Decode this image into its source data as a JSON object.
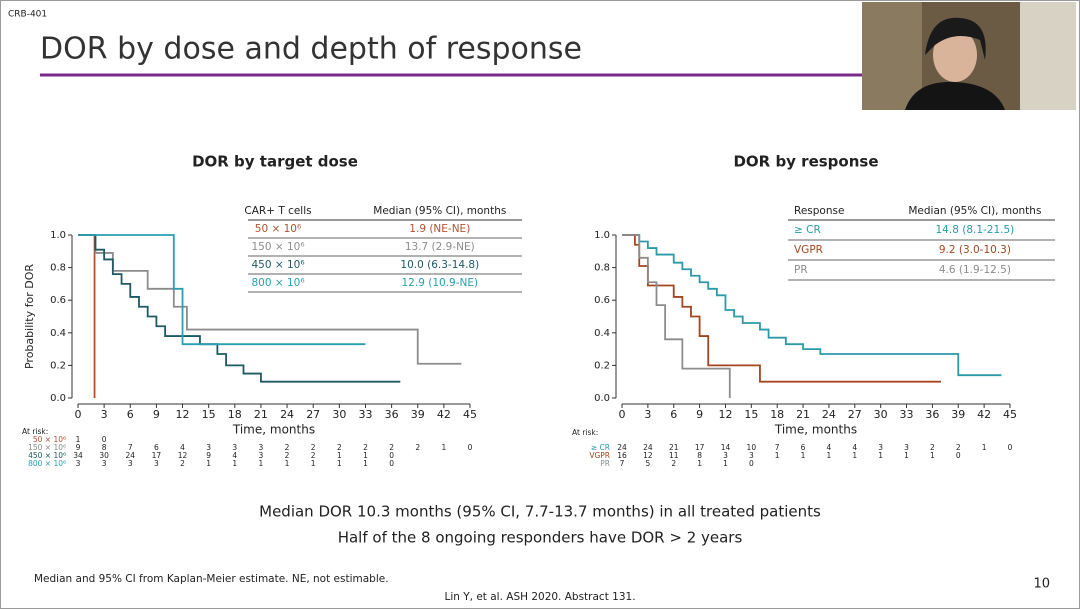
{
  "header": {
    "tag": "CRB-401",
    "title": "DOR by dose and depth of response"
  },
  "chart_data": [
    {
      "type": "line",
      "step": true,
      "title": "DOR by target dose",
      "y_label": "Probability for DOR",
      "x_label": "Time, months",
      "xlim": [
        0,
        45
      ],
      "ylim": [
        0,
        1
      ],
      "xticks": [
        0,
        3,
        6,
        9,
        12,
        15,
        18,
        21,
        24,
        27,
        30,
        33,
        36,
        39,
        42,
        45
      ],
      "yticks": [
        {
          "value": 0,
          "label": "0.0"
        },
        0.2,
        0.4,
        0.6,
        0.8,
        {
          "value": 1,
          "label": "1.0"
        }
      ],
      "table_headers": [
        "CAR+ T cells",
        "Median (95% CI), months"
      ],
      "at_risk_label": "At risk:",
      "series": [
        {
          "name": "50 × 10⁶",
          "color": "#b0532e",
          "median": "1.9 (NE-NE)",
          "x": [
            0,
            1.9
          ],
          "values": [
            1,
            0
          ],
          "at_risk": [
            1,
            0
          ]
        },
        {
          "name": "150 × 10⁶",
          "color": "#8c8c8c",
          "median": "13.7 (2.9-NE)",
          "x": [
            0,
            2,
            4,
            8,
            11,
            12.5,
            39,
            44
          ],
          "values": [
            1,
            0.89,
            0.78,
            0.67,
            0.56,
            0.42,
            0.21,
            0.21
          ],
          "at_risk": [
            9,
            8,
            7,
            6,
            4,
            3,
            3,
            3,
            2,
            2,
            2,
            2,
            2,
            2,
            1,
            0
          ]
        },
        {
          "name": "450 × 10⁶",
          "color": "#1d5a62",
          "median": "10.0 (6.3-14.8)",
          "x": [
            0,
            2,
            3,
            4,
            5,
            6,
            7,
            8,
            9,
            10,
            12,
            14,
            16,
            17,
            19,
            21,
            37
          ],
          "values": [
            1,
            0.91,
            0.85,
            0.76,
            0.7,
            0.62,
            0.56,
            0.5,
            0.44,
            0.38,
            0.38,
            0.33,
            0.27,
            0.2,
            0.15,
            0.1,
            0.1
          ],
          "at_risk": [
            34,
            30,
            24,
            17,
            12,
            9,
            4,
            3,
            2,
            2,
            1,
            1,
            0
          ]
        },
        {
          "name": "800 × 10⁶",
          "color": "#2a9fb0",
          "median": "12.9 (10.9-NE)",
          "x": [
            0,
            11,
            12,
            33
          ],
          "values": [
            1,
            0.67,
            0.33,
            0.33
          ],
          "at_risk": [
            3,
            3,
            3,
            3,
            2,
            1,
            1,
            1,
            1,
            1,
            1,
            1,
            0
          ]
        }
      ]
    },
    {
      "type": "line",
      "step": true,
      "title": "DOR by response",
      "x_label": "Time, months",
      "xlim": [
        0,
        45
      ],
      "ylim": [
        0,
        1
      ],
      "xticks": [
        0,
        3,
        6,
        9,
        12,
        15,
        18,
        21,
        24,
        27,
        30,
        33,
        36,
        39,
        42,
        45
      ],
      "yticks": [
        {
          "value": 0,
          "label": "0.0"
        },
        0.2,
        0.4,
        0.6,
        0.8,
        {
          "value": 1,
          "label": "1.0"
        }
      ],
      "table_headers": [
        "Response",
        "Median (95% CI), months"
      ],
      "at_risk_label": "At risk:",
      "series": [
        {
          "name": "≥ CR",
          "color": "#2a9aa8",
          "median": "14.8 (8.1-21.5)",
          "x": [
            0,
            2,
            3,
            4,
            6,
            7,
            8,
            9,
            10,
            11,
            12,
            13,
            14,
            16,
            17,
            19,
            21,
            23,
            39,
            44
          ],
          "values": [
            1,
            0.96,
            0.92,
            0.88,
            0.83,
            0.79,
            0.75,
            0.71,
            0.67,
            0.63,
            0.54,
            0.5,
            0.46,
            0.42,
            0.37,
            0.33,
            0.3,
            0.27,
            0.14,
            0.14
          ],
          "at_risk": [
            24,
            24,
            21,
            17,
            14,
            10,
            7,
            6,
            4,
            4,
            3,
            3,
            2,
            2,
            1,
            0
          ]
        },
        {
          "name": "VGPR",
          "color": "#a3461f",
          "median": "9.2 (3.0-10.3)",
          "x": [
            0,
            1.5,
            2,
            3,
            6,
            7,
            8,
            9,
            10,
            16,
            37
          ],
          "values": [
            1,
            0.94,
            0.81,
            0.69,
            0.62,
            0.56,
            0.5,
            0.38,
            0.2,
            0.1,
            0.1
          ],
          "at_risk": [
            16,
            12,
            11,
            8,
            3,
            3,
            1,
            1,
            1,
            1,
            1,
            1,
            1,
            0
          ]
        },
        {
          "name": "PR",
          "color": "#8c8c8c",
          "median": "4.6 (1.9-12.5)",
          "x": [
            0,
            2,
            3,
            4,
            5,
            7,
            12.5
          ],
          "values": [
            1,
            0.86,
            0.71,
            0.57,
            0.36,
            0.18,
            0
          ],
          "at_risk": [
            7,
            5,
            2,
            1,
            1,
            0
          ]
        }
      ]
    }
  ],
  "footer": {
    "summary": [
      "Median DOR 10.3 months  (95% CI, 7.7-13.7 months) in all treated patients",
      "Half of the 8 ongoing responders have DOR > 2 years"
    ],
    "footnote": "Median and 95% CI from Kaplan-Meier estimate. NE, not estimable.",
    "citation": "Lin Y, et al. ASH 2020. Abstract 131.",
    "page": "10"
  }
}
